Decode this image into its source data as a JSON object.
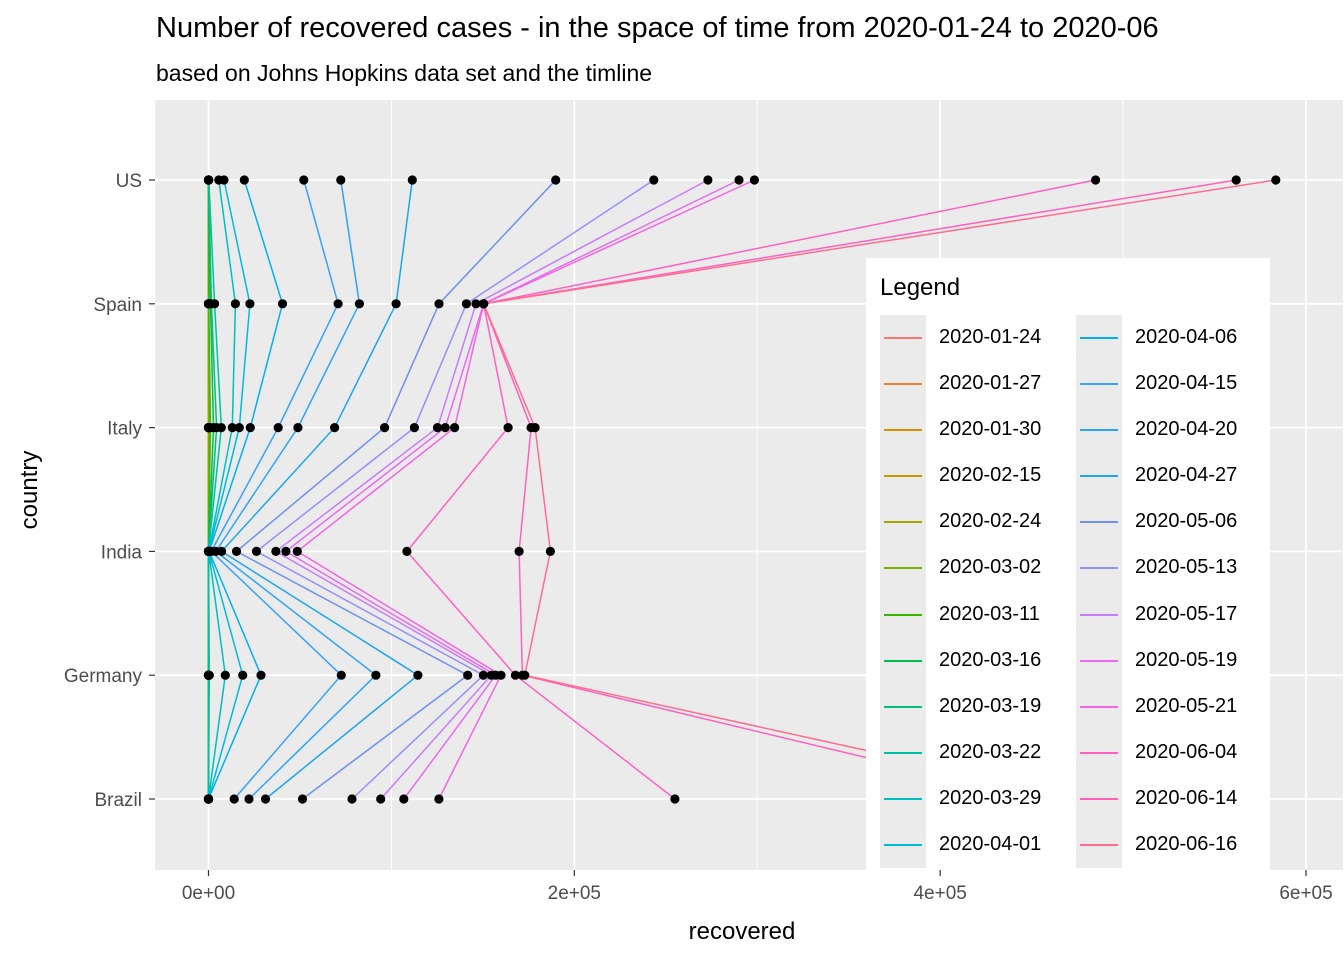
{
  "chart_data": {
    "type": "scatter",
    "title": "Number of recovered cases - in the space of time from 2020-01-24 to 2020-06",
    "subtitle": "based on Johns Hopkins data set and the timline",
    "xlabel": "recovered",
    "ylabel": "country",
    "xlim": [
      -30000,
      612000
    ],
    "x_ticks": [
      0,
      200000,
      400000,
      600000
    ],
    "x_tick_labels": [
      "0e+00",
      "2e+05",
      "4e+05",
      "6e+05"
    ],
    "categories": [
      "US",
      "Spain",
      "Italy",
      "India",
      "Germany",
      "Brazil"
    ],
    "grid": true,
    "legend_title": "Legend",
    "legend_position": "right, inside plot",
    "country_order_in_lines": [
      "Brazil",
      "Germany",
      "India",
      "Italy",
      "Spain",
      "US"
    ],
    "series": [
      {
        "name": "2020-01-24",
        "color": "#F8766D",
        "values": {
          "Brazil": 0,
          "Germany": 0,
          "India": 0,
          "Italy": 0,
          "Spain": 0,
          "US": 0
        }
      },
      {
        "name": "2020-01-27",
        "color": "#EA8331",
        "values": {
          "Brazil": 0,
          "Germany": 0,
          "India": 0,
          "Italy": 0,
          "Spain": 0,
          "US": 0
        }
      },
      {
        "name": "2020-01-30",
        "color": "#D89000",
        "values": {
          "Brazil": 0,
          "Germany": 0,
          "India": 0,
          "Italy": 0,
          "Spain": 0,
          "US": 0
        }
      },
      {
        "name": "2020-02-15",
        "color": "#C09B00",
        "values": {
          "Brazil": 0,
          "Germany": 0,
          "India": 0,
          "Italy": 0,
          "Spain": 0,
          "US": 3
        }
      },
      {
        "name": "2020-02-24",
        "color": "#A3A500",
        "values": {
          "Brazil": 0,
          "Germany": 0,
          "India": 3,
          "Italy": 1,
          "Spain": 2,
          "US": 5
        }
      },
      {
        "name": "2020-03-02",
        "color": "#7CAE00",
        "values": {
          "Brazil": 0,
          "Germany": 16,
          "India": 3,
          "Italy": 160,
          "Spain": 2,
          "US": 7
        }
      },
      {
        "name": "2020-03-11",
        "color": "#39B600",
        "values": {
          "Brazil": 0,
          "Germany": 25,
          "India": 4,
          "Italy": 1045,
          "Spain": 183,
          "US": 8
        }
      },
      {
        "name": "2020-03-16",
        "color": "#00BB4E",
        "values": {
          "Brazil": 0,
          "Germany": 46,
          "India": 13,
          "Italy": 2749,
          "Spain": 1107,
          "US": 17
        }
      },
      {
        "name": "2020-03-19",
        "color": "#00BF7D",
        "values": {
          "Brazil": 0,
          "Germany": 67,
          "India": 15,
          "Italy": 4440,
          "Spain": 1588,
          "US": 106
        }
      },
      {
        "name": "2020-03-22",
        "color": "#00C1A3",
        "values": {
          "Brazil": 0,
          "Germany": 453,
          "India": 23,
          "Italy": 7024,
          "Spain": 3355,
          "US": 176
        }
      },
      {
        "name": "2020-03-29",
        "color": "#00BFC4",
        "values": {
          "Brazil": 0,
          "Germany": 9211,
          "India": 102,
          "Italy": 13030,
          "Spain": 14709,
          "US": 5644
        }
      },
      {
        "name": "2020-04-01",
        "color": "#00BAE0",
        "values": {
          "Brazil": 0,
          "Germany": 18700,
          "India": 169,
          "Italy": 16847,
          "Spain": 22647,
          "US": 8474
        }
      },
      {
        "name": "2020-04-06",
        "color": "#00B0F6",
        "values": {
          "Brazil": 0,
          "Germany": 28700,
          "India": 328,
          "Italy": 22837,
          "Spain": 40437,
          "US": 19581
        }
      },
      {
        "name": "2020-04-15",
        "color": "#35A2FF",
        "values": {
          "Brazil": 14026,
          "Germany": 72600,
          "India": 1489,
          "Italy": 38092,
          "Spain": 70853,
          "US": 52096
        }
      },
      {
        "name": "2020-04-20",
        "color": "#2DA3FF",
        "values": {
          "Brazil": 22130,
          "Germany": 91500,
          "India": 3975,
          "Italy": 48877,
          "Spain": 82514,
          "US": 72329
        }
      },
      {
        "name": "2020-04-27",
        "color": "#1AA6F0",
        "values": {
          "Brazil": 31142,
          "Germany": 114500,
          "India": 7137,
          "Italy": 68941,
          "Spain": 102548,
          "US": 111424
        }
      },
      {
        "name": "2020-05-06",
        "color": "#6E90F0",
        "values": {
          "Brazil": 51370,
          "Germany": 141700,
          "India": 15331,
          "Italy": 96276,
          "Spain": 126002,
          "US": 189791
        }
      },
      {
        "name": "2020-05-13",
        "color": "#9590FF",
        "values": {
          "Brazil": 78424,
          "Germany": 150300,
          "India": 26235,
          "Italy": 112541,
          "Spain": 141000,
          "US": 243430
        }
      },
      {
        "name": "2020-05-17",
        "color": "#C77CFF",
        "values": {
          "Brazil": 94122,
          "Germany": 154600,
          "India": 36824,
          "Italy": 125176,
          "Spain": 146233,
          "US": 273000
        }
      },
      {
        "name": "2020-05-19",
        "color": "#E76BF3",
        "values": {
          "Brazil": 106794,
          "Germany": 157000,
          "India": 42298,
          "Italy": 129401,
          "Spain": 150376,
          "US": 290000
        }
      },
      {
        "name": "2020-05-21",
        "color": "#F564E3",
        "values": {
          "Brazil": 125960,
          "Germany": 159900,
          "India": 48553,
          "Italy": 134560,
          "Spain": 150376,
          "US": 298418
        }
      },
      {
        "name": "2020-06-04",
        "color": "#FF61C3",
        "values": {
          "Brazil": 254963,
          "Germany": 167800,
          "India": 108450,
          "Italy": 163781,
          "Spain": 150376,
          "US": 485002
        }
      },
      {
        "name": "2020-06-14",
        "color": "#FF62BC",
        "values": {
          "Brazil": 454000,
          "Germany": 171600,
          "India": 169798,
          "Italy": 176370,
          "Spain": 150376,
          "US": 561816
        }
      },
      {
        "name": "2020-06-16",
        "color": "#FF6C91",
        "values": {
          "Brazil": 480000,
          "Germany": 172900,
          "India": 186935,
          "Italy": 178526,
          "Spain": 150376,
          "US": 583503
        }
      }
    ]
  }
}
